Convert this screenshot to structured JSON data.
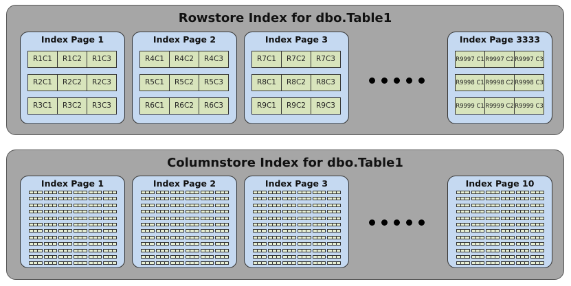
{
  "rowstore": {
    "title": "Rowstore Index for dbo.Table1",
    "pages": [
      {
        "title": "Index Page 1",
        "rows": [
          [
            "R1C1",
            "R1C2",
            "R1C3"
          ],
          [
            "R2C1",
            "R2C2",
            "R2C3"
          ],
          [
            "R3C1",
            "R3C2",
            "R3C3"
          ]
        ]
      },
      {
        "title": "Index Page 2",
        "rows": [
          [
            "R4C1",
            "R4C2",
            "R4C3"
          ],
          [
            "R5C1",
            "R5C2",
            "R5C3"
          ],
          [
            "R6C1",
            "R6C2",
            "R6C3"
          ]
        ]
      },
      {
        "title": "Index Page 3",
        "rows": [
          [
            "R7C1",
            "R7C2",
            "R7C3"
          ],
          [
            "R8C1",
            "R8C2",
            "R8C3"
          ],
          [
            "R9C1",
            "R9C2",
            "R9C3"
          ]
        ]
      },
      {
        "title": "Index Page 3333",
        "rows": [
          [
            "R9997 C1",
            "R9997 C2",
            "R9997 C3"
          ],
          [
            "R9998 C1",
            "R9998 C2",
            "R9998 C3"
          ],
          [
            "R9999 C1",
            "R9999 C2",
            "R9999 C3"
          ]
        ]
      }
    ]
  },
  "columnstore": {
    "title": "Columnstore Index for dbo.Table1",
    "pages": [
      {
        "title": "Index Page 1"
      },
      {
        "title": "Index Page 2"
      },
      {
        "title": "Index Page 3"
      },
      {
        "title": "Index Page 10"
      }
    ]
  },
  "colors": {
    "panel": "#a6a6a6",
    "page": "#c5d9f1",
    "cell": "#d8e4bc"
  }
}
